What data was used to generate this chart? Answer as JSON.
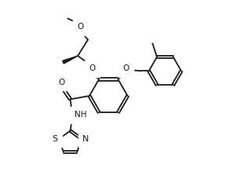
{
  "bg_color": "#ffffff",
  "line_color": "#1a1a1a",
  "lw": 1.3,
  "fs": 7.0,
  "figsize": [
    2.88,
    2.47
  ],
  "dpi": 100,
  "xlim": [
    0,
    10
  ],
  "ylim": [
    0,
    8.5
  ]
}
